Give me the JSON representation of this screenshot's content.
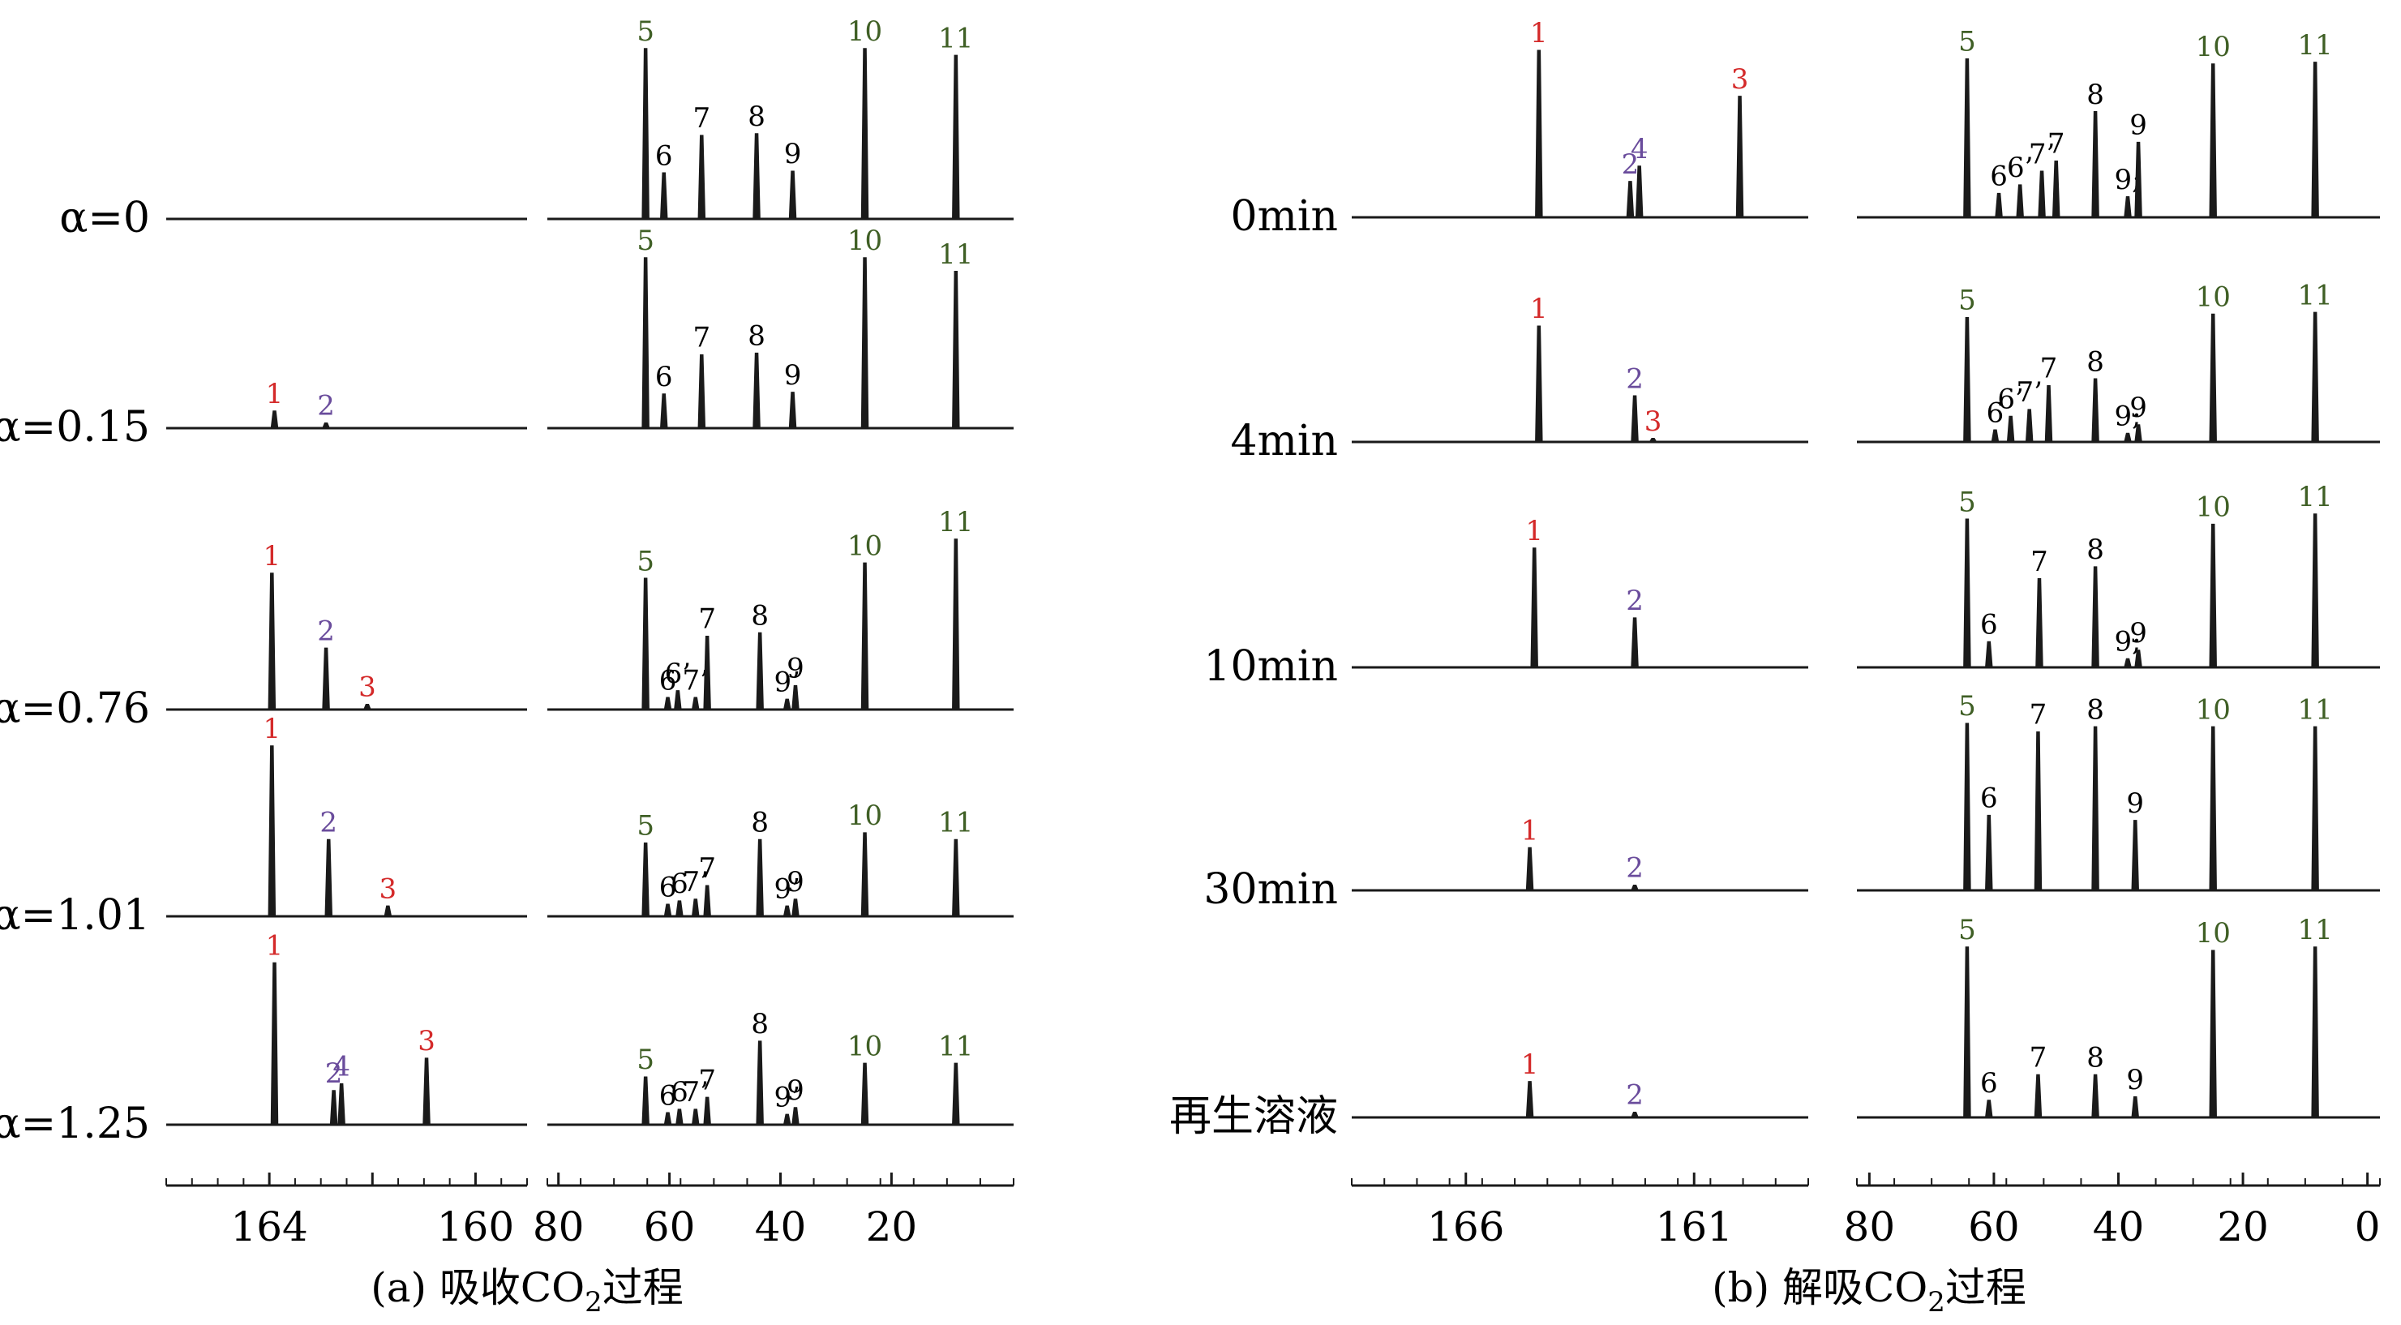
{
  "colors": {
    "trace": "#1a1a1a",
    "text": "#000000",
    "red": "#d42a2a",
    "purple": "#6a4c9c",
    "green": "#3f5f25"
  },
  "chart_data": [
    {
      "type": "line",
      "title": "(a) 吸收CO2过程",
      "caption": {
        "prefix": "(a) 吸收CO",
        "sub": "2",
        "suffix": "过程"
      },
      "xlabel": "",
      "ylabel": "",
      "xlim_left": [
        166,
        159
      ],
      "xlim_right": [
        82,
        -2
      ],
      "ticks_left": [
        {
          "value": 164,
          "label": "164"
        },
        {
          "value": 162,
          "label": ""
        },
        {
          "value": 160,
          "label": "160"
        }
      ],
      "ticks_right": [
        {
          "value": 80,
          "label": "80"
        },
        {
          "value": 60,
          "label": "60"
        },
        {
          "value": 40,
          "label": "40"
        },
        {
          "value": 20,
          "label": "20"
        }
      ],
      "traces": [
        {
          "label": "α=0",
          "left": [],
          "right": [
            {
              "x": 64.3,
              "h": 1.0,
              "n": "5",
              "c": "green"
            },
            {
              "x": 61.0,
              "h": 0.27,
              "n": "6",
              "c": "black"
            },
            {
              "x": 54.2,
              "h": 0.49,
              "n": "7",
              "c": "black"
            },
            {
              "x": 44.3,
              "h": 0.5,
              "n": "8",
              "c": "black"
            },
            {
              "x": 37.8,
              "h": 0.28,
              "n": "9",
              "c": "black"
            },
            {
              "x": 24.8,
              "h": 1.0,
              "n": "10",
              "c": "green"
            },
            {
              "x": 8.4,
              "h": 0.96,
              "n": "11",
              "c": "green"
            }
          ]
        },
        {
          "label": "α=0.15",
          "left": [
            {
              "x": 163.9,
              "h": 0.1,
              "n": "1",
              "c": "red"
            },
            {
              "x": 162.9,
              "h": 0.03,
              "n": "2",
              "c": "purple"
            }
          ],
          "right": [
            {
              "x": 64.3,
              "h": 1.0,
              "n": "5",
              "c": "green"
            },
            {
              "x": 61.0,
              "h": 0.2,
              "n": "6",
              "c": "black"
            },
            {
              "x": 54.2,
              "h": 0.43,
              "n": "7",
              "c": "black"
            },
            {
              "x": 44.3,
              "h": 0.44,
              "n": "8",
              "c": "black"
            },
            {
              "x": 37.8,
              "h": 0.21,
              "n": "9",
              "c": "black"
            },
            {
              "x": 24.8,
              "h": 1.0,
              "n": "10",
              "c": "green"
            },
            {
              "x": 8.4,
              "h": 0.92,
              "n": "11",
              "c": "green"
            }
          ]
        },
        {
          "label": "α=0.76",
          "left": [
            {
              "x": 163.95,
              "h": 0.8,
              "n": "1",
              "c": "red"
            },
            {
              "x": 162.9,
              "h": 0.36,
              "n": "2",
              "c": "purple"
            },
            {
              "x": 162.1,
              "h": 0.03,
              "n": "3",
              "c": "red"
            }
          ],
          "right": [
            {
              "x": 64.3,
              "h": 0.77,
              "n": "5",
              "c": "green"
            },
            {
              "x": 60.3,
              "h": 0.07,
              "n": "6",
              "c": "black"
            },
            {
              "x": 58.5,
              "h": 0.11,
              "n": "6’",
              "c": "black"
            },
            {
              "x": 55.3,
              "h": 0.07,
              "n": "7’",
              "c": "black"
            },
            {
              "x": 53.2,
              "h": 0.43,
              "n": "7",
              "c": "black"
            },
            {
              "x": 43.7,
              "h": 0.45,
              "n": "8",
              "c": "black"
            },
            {
              "x": 38.8,
              "h": 0.06,
              "n": "9’",
              "c": "black"
            },
            {
              "x": 37.3,
              "h": 0.14,
              "n": "9",
              "c": "black"
            },
            {
              "x": 24.8,
              "h": 0.86,
              "n": "10",
              "c": "green"
            },
            {
              "x": 8.4,
              "h": 1.0,
              "n": "11",
              "c": "green"
            }
          ]
        },
        {
          "label": "α=1.01",
          "left": [
            {
              "x": 163.95,
              "h": 1.0,
              "n": "1",
              "c": "red"
            },
            {
              "x": 162.85,
              "h": 0.45,
              "n": "2",
              "c": "purple"
            },
            {
              "x": 161.7,
              "h": 0.06,
              "n": "3",
              "c": "red"
            }
          ],
          "right": [
            {
              "x": 64.3,
              "h": 0.43,
              "n": "5",
              "c": "green"
            },
            {
              "x": 60.3,
              "h": 0.07,
              "n": "6",
              "c": "black"
            },
            {
              "x": 58.2,
              "h": 0.09,
              "n": "6",
              "c": "black"
            },
            {
              "x": 55.3,
              "h": 0.1,
              "n": "7’",
              "c": "black"
            },
            {
              "x": 53.2,
              "h": 0.18,
              "n": "7",
              "c": "black"
            },
            {
              "x": 43.7,
              "h": 0.45,
              "n": "8",
              "c": "black"
            },
            {
              "x": 38.8,
              "h": 0.06,
              "n": "9’",
              "c": "black"
            },
            {
              "x": 37.3,
              "h": 0.1,
              "n": "9",
              "c": "black"
            },
            {
              "x": 24.8,
              "h": 0.49,
              "n": "10",
              "c": "green"
            },
            {
              "x": 8.4,
              "h": 0.45,
              "n": "11",
              "c": "green"
            }
          ]
        },
        {
          "label": "α=1.25",
          "left": [
            {
              "x": 163.9,
              "h": 0.95,
              "n": "1",
              "c": "red"
            },
            {
              "x": 162.75,
              "h": 0.2,
              "n": "2",
              "c": "purple"
            },
            {
              "x": 162.6,
              "h": 0.24,
              "n": "4",
              "c": "purple"
            },
            {
              "x": 160.95,
              "h": 0.39,
              "n": "3",
              "c": "red"
            }
          ],
          "right": [
            {
              "x": 64.3,
              "h": 0.28,
              "n": "5",
              "c": "green"
            },
            {
              "x": 60.3,
              "h": 0.07,
              "n": "6",
              "c": "black"
            },
            {
              "x": 58.2,
              "h": 0.09,
              "n": "6",
              "c": "black"
            },
            {
              "x": 55.3,
              "h": 0.09,
              "n": "7’",
              "c": "black"
            },
            {
              "x": 53.2,
              "h": 0.16,
              "n": "7",
              "c": "black"
            },
            {
              "x": 43.7,
              "h": 0.49,
              "n": "8",
              "c": "black"
            },
            {
              "x": 38.8,
              "h": 0.06,
              "n": "9’",
              "c": "black"
            },
            {
              "x": 37.3,
              "h": 0.1,
              "n": "9",
              "c": "black"
            },
            {
              "x": 24.8,
              "h": 0.36,
              "n": "10",
              "c": "green"
            },
            {
              "x": 8.4,
              "h": 0.36,
              "n": "11",
              "c": "green"
            }
          ]
        }
      ]
    },
    {
      "type": "line",
      "title": "(b) 解吸CO2过程",
      "caption": {
        "prefix": "(b) 解吸CO",
        "sub": "2",
        "suffix": "过程"
      },
      "xlabel": "",
      "ylabel": "",
      "xlim_left": [
        168.5,
        158.5
      ],
      "xlim_right": [
        82,
        -2
      ],
      "ticks_left": [
        {
          "value": 166,
          "label": "166"
        },
        {
          "value": 161,
          "label": "161"
        }
      ],
      "ticks_right": [
        {
          "value": 80,
          "label": "80"
        },
        {
          "value": 60,
          "label": "60"
        },
        {
          "value": 40,
          "label": "40"
        },
        {
          "value": 20,
          "label": "20"
        },
        {
          "value": 0,
          "label": "0"
        }
      ],
      "traces": [
        {
          "label": "0min",
          "left": [
            {
              "x": 164.4,
              "h": 0.98,
              "n": "1",
              "c": "red"
            },
            {
              "x": 162.4,
              "h": 0.21,
              "n": "2",
              "c": "purple"
            },
            {
              "x": 162.2,
              "h": 0.3,
              "n": "4",
              "c": "purple"
            },
            {
              "x": 160.0,
              "h": 0.71,
              "n": "3",
              "c": "red"
            }
          ],
          "right": [
            {
              "x": 64.3,
              "h": 0.93,
              "n": "5",
              "c": "green"
            },
            {
              "x": 59.2,
              "h": 0.14,
              "n": "6",
              "c": "black"
            },
            {
              "x": 55.8,
              "h": 0.19,
              "n": "6’",
              "c": "black"
            },
            {
              "x": 52.3,
              "h": 0.27,
              "n": "7’",
              "c": "black"
            },
            {
              "x": 50.0,
              "h": 0.33,
              "n": "7",
              "c": "black"
            },
            {
              "x": 43.7,
              "h": 0.62,
              "n": "8",
              "c": "black"
            },
            {
              "x": 38.5,
              "h": 0.12,
              "n": "9;",
              "c": "black"
            },
            {
              "x": 36.8,
              "h": 0.44,
              "n": "9",
              "c": "black"
            },
            {
              "x": 24.8,
              "h": 0.9,
              "n": "10",
              "c": "green"
            },
            {
              "x": 8.4,
              "h": 0.91,
              "n": "11",
              "c": "green"
            }
          ]
        },
        {
          "label": "4min",
          "left": [
            {
              "x": 164.4,
              "h": 0.68,
              "n": "1",
              "c": "red"
            },
            {
              "x": 162.3,
              "h": 0.27,
              "n": "2",
              "c": "purple"
            },
            {
              "x": 161.9,
              "h": 0.02,
              "n": "3",
              "c": "red"
            }
          ],
          "right": [
            {
              "x": 64.3,
              "h": 0.73,
              "n": "5",
              "c": "green"
            },
            {
              "x": 59.8,
              "h": 0.07,
              "n": "6",
              "c": "black"
            },
            {
              "x": 57.3,
              "h": 0.15,
              "n": "6’",
              "c": "black"
            },
            {
              "x": 54.3,
              "h": 0.19,
              "n": "7’",
              "c": "black"
            },
            {
              "x": 51.2,
              "h": 0.33,
              "n": "7",
              "c": "black"
            },
            {
              "x": 43.7,
              "h": 0.37,
              "n": "8",
              "c": "black"
            },
            {
              "x": 38.5,
              "h": 0.05,
              "n": "9;",
              "c": "black"
            },
            {
              "x": 36.8,
              "h": 0.1,
              "n": "9",
              "c": "black"
            },
            {
              "x": 24.8,
              "h": 0.75,
              "n": "10",
              "c": "green"
            },
            {
              "x": 8.4,
              "h": 0.76,
              "n": "11",
              "c": "green"
            }
          ]
        },
        {
          "label": "10min",
          "left": [
            {
              "x": 164.5,
              "h": 0.7,
              "n": "1",
              "c": "red"
            },
            {
              "x": 162.3,
              "h": 0.29,
              "n": "2",
              "c": "purple"
            }
          ],
          "right": [
            {
              "x": 64.3,
              "h": 0.87,
              "n": "5",
              "c": "green"
            },
            {
              "x": 60.8,
              "h": 0.15,
              "n": "6",
              "c": "black"
            },
            {
              "x": 52.7,
              "h": 0.52,
              "n": "7",
              "c": "black"
            },
            {
              "x": 43.7,
              "h": 0.59,
              "n": "8",
              "c": "black"
            },
            {
              "x": 38.5,
              "h": 0.05,
              "n": "9;",
              "c": "black"
            },
            {
              "x": 36.8,
              "h": 0.1,
              "n": "9",
              "c": "black"
            },
            {
              "x": 24.8,
              "h": 0.84,
              "n": "10",
              "c": "green"
            },
            {
              "x": 8.4,
              "h": 0.9,
              "n": "11",
              "c": "green"
            }
          ]
        },
        {
          "label": "30min",
          "left": [
            {
              "x": 164.6,
              "h": 0.25,
              "n": "1",
              "c": "red"
            },
            {
              "x": 162.3,
              "h": 0.03,
              "n": "2",
              "c": "purple"
            }
          ],
          "right": [
            {
              "x": 64.3,
              "h": 0.98,
              "n": "5",
              "c": "green"
            },
            {
              "x": 60.8,
              "h": 0.44,
              "n": "6",
              "c": "black"
            },
            {
              "x": 52.9,
              "h": 0.93,
              "n": "7",
              "c": "black"
            },
            {
              "x": 43.7,
              "h": 0.96,
              "n": "8",
              "c": "black"
            },
            {
              "x": 37.3,
              "h": 0.41,
              "n": "9",
              "c": "black"
            },
            {
              "x": 24.8,
              "h": 0.96,
              "n": "10",
              "c": "green"
            },
            {
              "x": 8.4,
              "h": 0.96,
              "n": "11",
              "c": "green"
            }
          ]
        },
        {
          "label": "再生溶液",
          "left": [
            {
              "x": 164.6,
              "h": 0.21,
              "n": "1",
              "c": "red"
            },
            {
              "x": 162.3,
              "h": 0.03,
              "n": "2",
              "c": "purple"
            }
          ],
          "right": [
            {
              "x": 64.3,
              "h": 1.0,
              "n": "5",
              "c": "green"
            },
            {
              "x": 60.8,
              "h": 0.1,
              "n": "6",
              "c": "black"
            },
            {
              "x": 52.9,
              "h": 0.25,
              "n": "7",
              "c": "black"
            },
            {
              "x": 43.7,
              "h": 0.25,
              "n": "8",
              "c": "black"
            },
            {
              "x": 37.3,
              "h": 0.12,
              "n": "9",
              "c": "black"
            },
            {
              "x": 24.8,
              "h": 0.98,
              "n": "10",
              "c": "green"
            },
            {
              "x": 8.4,
              "h": 1.0,
              "n": "11",
              "c": "green"
            }
          ]
        }
      ]
    }
  ]
}
